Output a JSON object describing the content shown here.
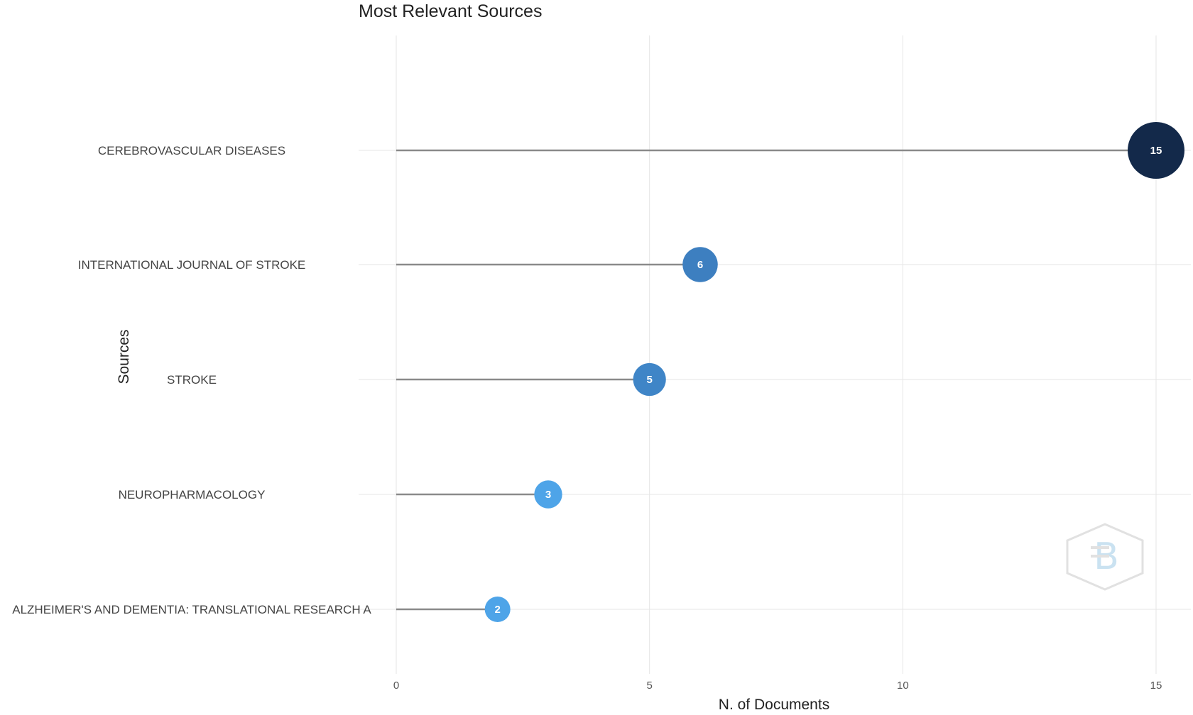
{
  "chart_data": {
    "type": "scatter",
    "subtype": "lollipop",
    "title": "Most Relevant Sources",
    "xlabel": "N. of Documents",
    "ylabel": "Sources",
    "xlim": [
      0,
      15
    ],
    "xticks": [
      0,
      5,
      10,
      15
    ],
    "grid": true,
    "legend": "none",
    "categories": [
      "CEREBROVASCULAR DISEASES",
      "INTERNATIONAL JOURNAL OF STROKE",
      "STROKE",
      "NEUROPHARMACOLOGY",
      "ALZHEIMER'S AND DEMENTIA: TRANSLATIONAL RESEARCH A"
    ],
    "values": [
      15,
      6,
      5,
      3,
      2
    ],
    "point_colors": [
      "#13294a",
      "#3d7fc0",
      "#3f85c7",
      "#4ea4e8",
      "#4ea4e8"
    ],
    "stem_color": "#8a8a8a",
    "grid_color": "#e6e6e6"
  },
  "watermark": "bibliometrix"
}
